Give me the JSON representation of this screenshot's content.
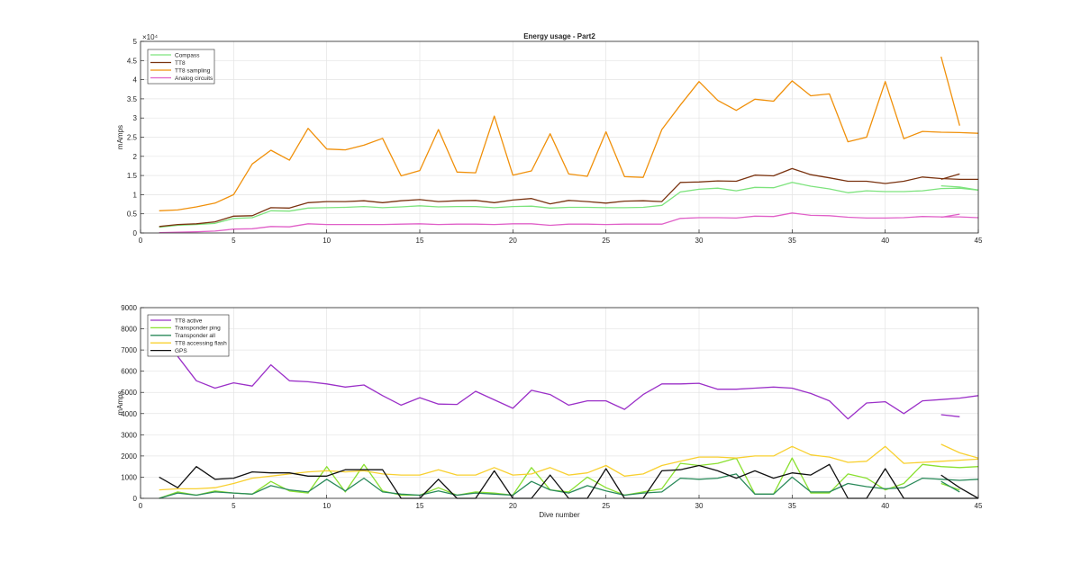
{
  "chart_data": [
    {
      "type": "line",
      "title": "Energy usage - Part2",
      "xlabel": "",
      "ylabel": "mAmps",
      "xlim": [
        0,
        45
      ],
      "ylim": [
        0,
        50000
      ],
      "xticks": [
        0,
        5,
        10,
        15,
        20,
        25,
        30,
        35,
        40,
        45
      ],
      "yticks": [
        0,
        0.5,
        1,
        1.5,
        2,
        2.5,
        3,
        3.5,
        4,
        4.5,
        5
      ],
      "y_exponent": "×10⁴",
      "grid": true,
      "legend": "top-left",
      "colors": {
        "Compass": "#7de37d",
        "TT8": "#7a3310",
        "TT8 sampling": "#f0900a",
        "Analog circuits": "#e060c8"
      },
      "series": [
        {
          "name": "Compass",
          "x": [
            1,
            2,
            3,
            4,
            5,
            6,
            7,
            8,
            9,
            10,
            11,
            12,
            13,
            14,
            15,
            16,
            17,
            18,
            19,
            20,
            21,
            22,
            23,
            24,
            25,
            26,
            27,
            28,
            29,
            30,
            31,
            32,
            33,
            34,
            35,
            36,
            37,
            38,
            39,
            40,
            41,
            42,
            43,
            44,
            45
          ],
          "y": [
            1500,
            2000,
            2200,
            2500,
            3800,
            4000,
            5800,
            5700,
            6500,
            6600,
            6700,
            6900,
            6600,
            6800,
            7100,
            6800,
            6900,
            6900,
            6600,
            6900,
            7000,
            6500,
            6700,
            6700,
            6600,
            6600,
            6700,
            7200,
            10700,
            11400,
            11700,
            11000,
            11900,
            11800,
            13200,
            12200,
            11500,
            10500,
            11000,
            10800,
            10800,
            11000,
            11600,
            11700,
            11200
          ],
          "tail": {
            "x": [
              43,
              44,
              45
            ],
            "y": [
              12300,
              12000,
              11200
            ]
          }
        },
        {
          "name": "TT8",
          "x": [
            1,
            2,
            3,
            4,
            5,
            6,
            7,
            8,
            9,
            10,
            11,
            12,
            13,
            14,
            15,
            16,
            17,
            18,
            19,
            20,
            21,
            22,
            23,
            24,
            25,
            26,
            27,
            28,
            29,
            30,
            31,
            32,
            33,
            34,
            35,
            36,
            37,
            38,
            39,
            40,
            41,
            42,
            43,
            44,
            45
          ],
          "y": [
            1700,
            2200,
            2400,
            2900,
            4400,
            4500,
            6600,
            6500,
            7900,
            8200,
            8200,
            8400,
            7900,
            8400,
            8700,
            8200,
            8400,
            8500,
            7900,
            8600,
            9000,
            7600,
            8500,
            8200,
            7800,
            8300,
            8400,
            8200,
            13200,
            13300,
            13600,
            13500,
            15100,
            14900,
            16800,
            15200,
            14400,
            13500,
            13500,
            12900,
            13500,
            14600,
            14200,
            14000,
            14000
          ],
          "tail": {
            "x": [
              43,
              44
            ],
            "y": [
              14000,
              15400
            ]
          }
        },
        {
          "name": "TT8 sampling",
          "x": [
            1,
            2,
            3,
            4,
            5,
            6,
            7,
            8,
            9,
            10,
            11,
            12,
            13,
            14,
            15,
            16,
            17,
            18,
            19,
            20,
            21,
            22,
            23,
            24,
            25,
            26,
            27,
            28,
            29,
            30,
            31,
            32,
            33,
            34,
            35,
            36,
            37,
            38,
            39,
            40,
            41,
            42,
            43,
            44,
            45
          ],
          "y": [
            5800,
            6000,
            6800,
            7800,
            10000,
            18000,
            21600,
            19000,
            27300,
            21900,
            21700,
            22900,
            24700,
            14900,
            16300,
            27000,
            15900,
            15700,
            30500,
            15100,
            16200,
            25900,
            15400,
            14800,
            26400,
            14700,
            14500,
            27000,
            33400,
            39500,
            34600,
            32000,
            34900,
            34400,
            39700,
            35800,
            36300,
            23800,
            25000,
            39500,
            24600,
            26500,
            26300,
            26200,
            26000
          ],
          "tail": {
            "x": [
              43,
              44
            ],
            "y": [
              46000,
              28000
            ]
          }
        },
        {
          "name": "Analog circuits",
          "x": [
            1,
            2,
            3,
            4,
            5,
            6,
            7,
            8,
            9,
            10,
            11,
            12,
            13,
            14,
            15,
            16,
            17,
            18,
            19,
            20,
            21,
            22,
            23,
            24,
            25,
            26,
            27,
            28,
            29,
            30,
            31,
            32,
            33,
            34,
            35,
            36,
            37,
            38,
            39,
            40,
            41,
            42,
            43,
            44,
            45
          ],
          "y": [
            100,
            200,
            300,
            500,
            1000,
            1100,
            1700,
            1600,
            2400,
            2200,
            2200,
            2200,
            2200,
            2300,
            2400,
            2200,
            2300,
            2300,
            2200,
            2400,
            2400,
            2000,
            2300,
            2300,
            2200,
            2300,
            2300,
            2300,
            3800,
            4000,
            4000,
            3900,
            4400,
            4300,
            5200,
            4600,
            4500,
            4100,
            3900,
            3900,
            4000,
            4300,
            4200,
            4200,
            4000
          ],
          "tail": {
            "x": [
              43,
              44
            ],
            "y": [
              4100,
              4900
            ]
          }
        }
      ]
    },
    {
      "type": "line",
      "title": "",
      "xlabel": "Dive number",
      "ylabel": "mAmps",
      "xlim": [
        0,
        45
      ],
      "ylim": [
        0,
        9000
      ],
      "xticks": [
        0,
        5,
        10,
        15,
        20,
        25,
        30,
        35,
        40,
        45
      ],
      "yticks": [
        0,
        1000,
        2000,
        3000,
        4000,
        5000,
        6000,
        7000,
        8000,
        9000
      ],
      "grid": true,
      "legend": "top-left",
      "colors": {
        "TT8 active": "#9b30c8",
        "Transponder ping": "#8ae030",
        "Transponder all": "#2a8a5a",
        "TT8 accessing flash": "#f8d030",
        "GPS": "#111111"
      },
      "series": [
        {
          "name": "TT8 active",
          "x": [
            2,
            3,
            4,
            5,
            6,
            7,
            8,
            9,
            10,
            11,
            12,
            13,
            14,
            15,
            16,
            17,
            18,
            19,
            20,
            21,
            22,
            23,
            24,
            25,
            26,
            27,
            28,
            29,
            30,
            31,
            32,
            33,
            34,
            35,
            36,
            37,
            38,
            39,
            40,
            41,
            42,
            43,
            44,
            45
          ],
          "y": [
            6700,
            5550,
            5200,
            5450,
            5300,
            6300,
            5550,
            5500,
            5400,
            5250,
            5350,
            4850,
            4400,
            4750,
            4450,
            4430,
            5050,
            4650,
            4250,
            5100,
            4900,
            4400,
            4600,
            4600,
            4200,
            4900,
            5400,
            5400,
            5430,
            5150,
            5150,
            5200,
            5250,
            5200,
            4950,
            4600,
            3750,
            4500,
            4560,
            4000,
            4600,
            4660,
            4730,
            4850
          ],
          "tail": {
            "x": [
              43,
              44
            ],
            "y": [
              3950,
              3850
            ]
          }
        },
        {
          "name": "Transponder ping",
          "x": [
            1,
            2,
            3,
            4,
            5,
            6,
            7,
            8,
            9,
            10,
            11,
            12,
            13,
            14,
            15,
            16,
            17,
            18,
            19,
            20,
            21,
            22,
            23,
            24,
            25,
            26,
            27,
            28,
            29,
            30,
            31,
            32,
            33,
            34,
            35,
            36,
            37,
            38,
            39,
            40,
            41,
            42,
            43,
            44,
            45
          ],
          "y": [
            0,
            300,
            150,
            350,
            250,
            200,
            800,
            350,
            250,
            1500,
            300,
            1600,
            350,
            150,
            150,
            500,
            150,
            300,
            250,
            150,
            1450,
            400,
            300,
            1000,
            500,
            150,
            300,
            450,
            1650,
            1550,
            1650,
            1900,
            200,
            200,
            1900,
            250,
            250,
            1150,
            950,
            400,
            700,
            1600,
            1500,
            1450,
            1500
          ],
          "tail": {
            "x": [
              43,
              44
            ],
            "y": [
              700,
              400
            ]
          }
        },
        {
          "name": "Transponder all",
          "x": [
            1,
            2,
            3,
            4,
            5,
            6,
            7,
            8,
            9,
            10,
            11,
            12,
            13,
            14,
            15,
            16,
            17,
            18,
            19,
            20,
            21,
            22,
            23,
            24,
            25,
            26,
            27,
            28,
            29,
            30,
            31,
            32,
            33,
            34,
            35,
            36,
            37,
            38,
            39,
            40,
            41,
            42,
            43,
            44,
            45
          ],
          "y": [
            0,
            250,
            150,
            300,
            250,
            200,
            600,
            400,
            300,
            900,
            350,
            950,
            300,
            200,
            150,
            350,
            150,
            250,
            200,
            150,
            800,
            400,
            250,
            600,
            350,
            150,
            250,
            300,
            950,
            900,
            950,
            1150,
            200,
            200,
            1000,
            300,
            300,
            700,
            550,
            450,
            500,
            950,
            900,
            850,
            900
          ],
          "tail": {
            "x": [
              43,
              44
            ],
            "y": [
              800,
              300
            ]
          }
        },
        {
          "name": "TT8 accessing flash",
          "x": [
            1,
            2,
            3,
            4,
            5,
            6,
            7,
            8,
            9,
            10,
            11,
            12,
            13,
            14,
            15,
            16,
            17,
            18,
            19,
            20,
            21,
            22,
            23,
            24,
            25,
            26,
            27,
            28,
            29,
            30,
            31,
            32,
            33,
            34,
            35,
            36,
            37,
            38,
            39,
            40,
            41,
            42,
            43,
            44,
            45
          ],
          "y": [
            400,
            450,
            450,
            500,
            700,
            950,
            1050,
            1150,
            1250,
            1300,
            1250,
            1300,
            1150,
            1100,
            1100,
            1350,
            1100,
            1100,
            1450,
            1100,
            1150,
            1450,
            1100,
            1200,
            1550,
            1050,
            1150,
            1550,
            1750,
            1950,
            1950,
            1900,
            2000,
            2000,
            2450,
            2050,
            1950,
            1700,
            1750,
            2450,
            1650,
            1700,
            1750,
            1800,
            1850
          ],
          "tail": {
            "x": [
              43,
              44,
              45
            ],
            "y": [
              2550,
              2150,
              1900
            ]
          }
        },
        {
          "name": "GPS",
          "x": [
            1,
            2,
            3,
            4,
            5,
            6,
            7,
            8,
            9,
            10,
            11,
            12,
            13,
            14,
            15,
            16,
            17,
            18,
            19,
            20,
            21,
            22,
            23,
            24,
            25,
            26,
            27,
            28,
            29,
            30,
            31,
            32,
            33,
            34,
            35,
            36,
            37,
            38,
            39,
            40,
            41,
            42,
            43,
            44,
            45
          ],
          "y": [
            1000,
            500,
            1500,
            900,
            950,
            1250,
            1200,
            1200,
            1050,
            1050,
            1350,
            1350,
            1350,
            0,
            0,
            900,
            0,
            0,
            1300,
            0,
            0,
            1100,
            0,
            0,
            1400,
            0,
            0,
            1300,
            1350,
            1550,
            1300,
            950,
            1300,
            950,
            1200,
            1100,
            1600,
            0,
            0,
            1400,
            0,
            0,
            0,
            0,
            0
          ],
          "tail": {
            "x": [
              43,
              44,
              45
            ],
            "y": [
              1100,
              500,
              0
            ]
          }
        }
      ]
    }
  ]
}
